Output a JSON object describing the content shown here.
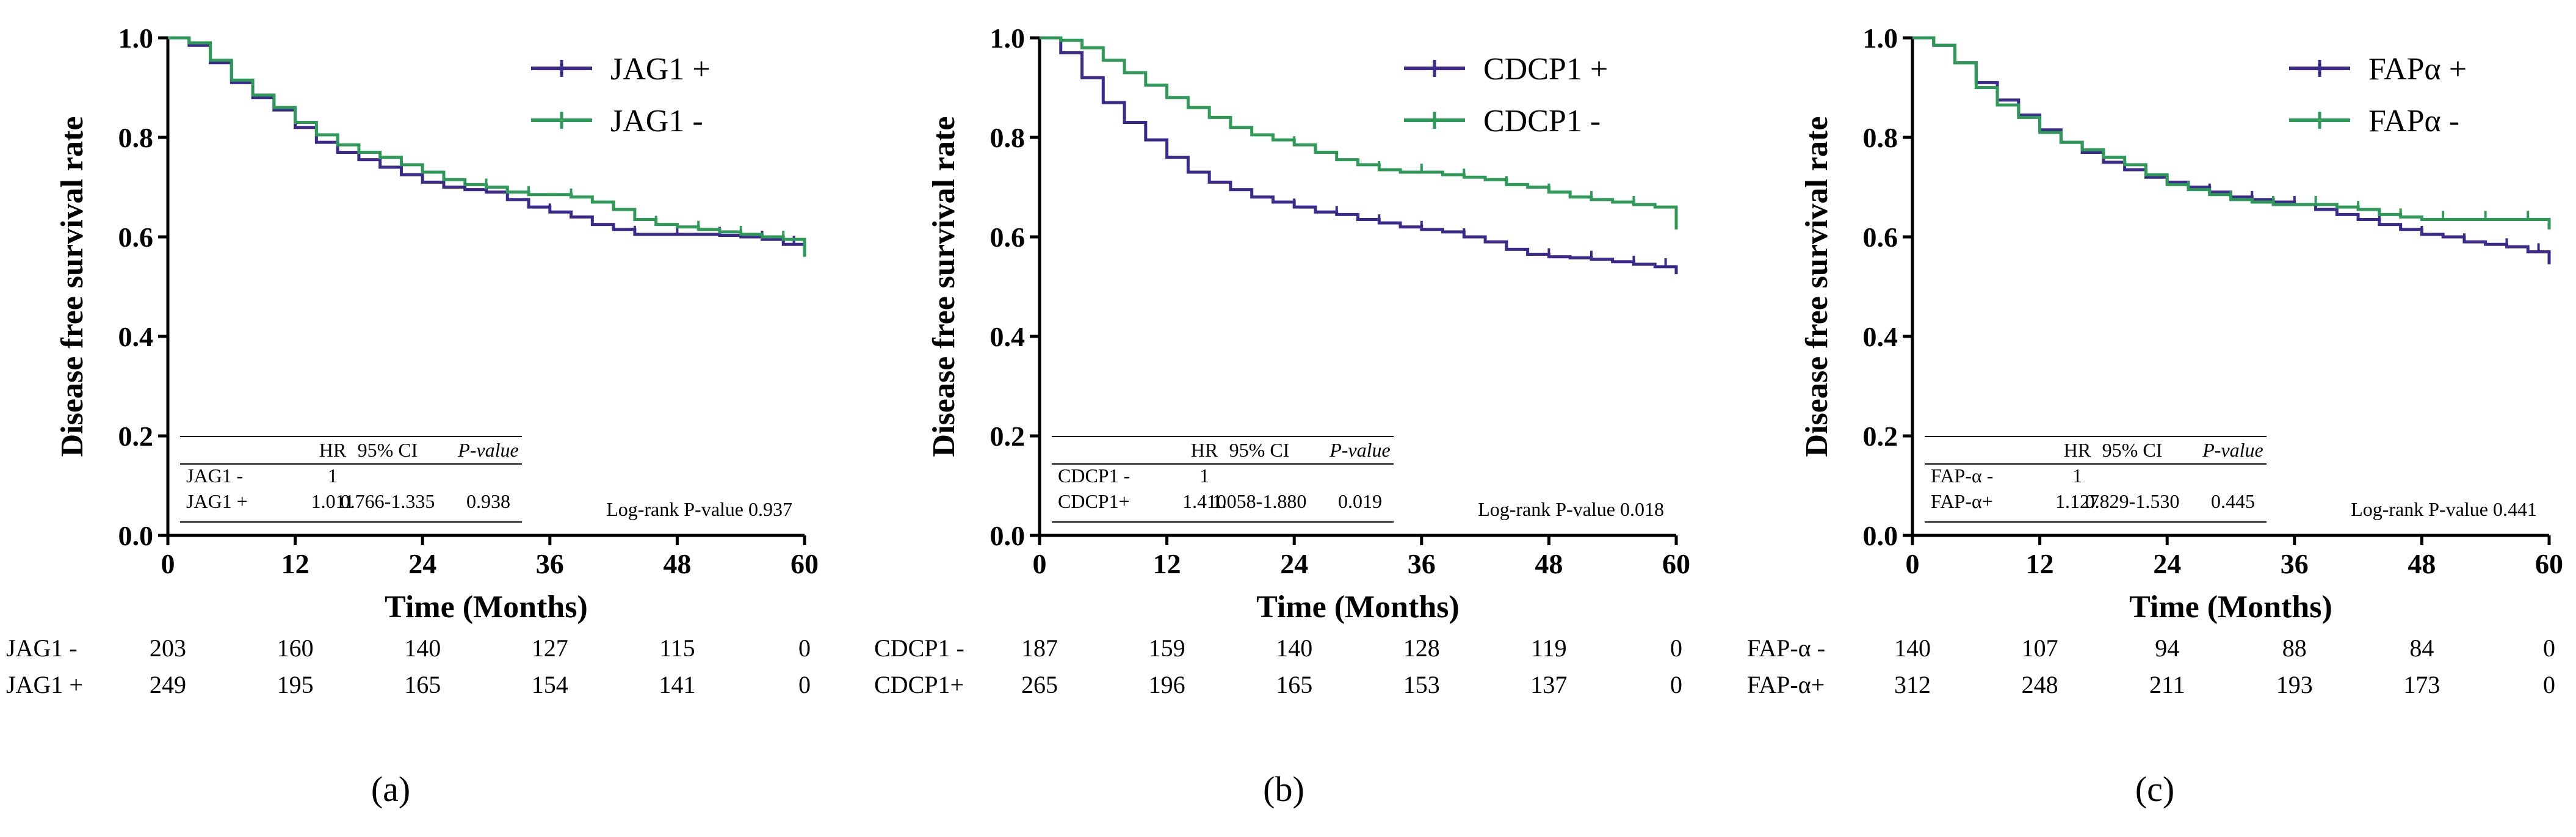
{
  "colors": {
    "positive": "#3b2a8c",
    "negative": "#2e9a57",
    "axis": "#000000"
  },
  "chart_data": [
    {
      "type": "line",
      "panel_label": "(a)",
      "ylabel": "Disease free survival rate",
      "xlabel": "Time (Months)",
      "xlim": [
        0,
        60
      ],
      "ylim": [
        0,
        1
      ],
      "xticks": [
        "0",
        "12",
        "24",
        "36",
        "48",
        "60"
      ],
      "yticks": [
        "0.0",
        "0.2",
        "0.4",
        "0.6",
        "0.8",
        "1.0"
      ],
      "legend_position": "top-right",
      "series": [
        {
          "name": "JAG1 +",
          "color": "positive",
          "x": [
            0,
            2,
            4,
            6,
            8,
            10,
            12,
            14,
            16,
            18,
            20,
            22,
            24,
            26,
            28,
            30,
            32,
            34,
            36,
            38,
            40,
            42,
            44,
            46,
            48,
            50,
            52,
            54,
            56,
            58,
            60
          ],
          "y": [
            1.0,
            0.985,
            0.95,
            0.91,
            0.88,
            0.855,
            0.82,
            0.79,
            0.77,
            0.755,
            0.74,
            0.725,
            0.71,
            0.7,
            0.695,
            0.69,
            0.675,
            0.66,
            0.65,
            0.64,
            0.625,
            0.615,
            0.605,
            0.605,
            0.605,
            0.605,
            0.603,
            0.6,
            0.595,
            0.585,
            0.57
          ],
          "censor_x": [
            16,
            20,
            24,
            28,
            32,
            36,
            40,
            44,
            48,
            52,
            56,
            59
          ]
        },
        {
          "name": "JAG1 -",
          "color": "negative",
          "x": [
            0,
            2,
            4,
            6,
            8,
            10,
            12,
            14,
            16,
            18,
            20,
            22,
            24,
            26,
            28,
            30,
            32,
            34,
            36,
            38,
            40,
            42,
            44,
            46,
            48,
            50,
            52,
            54,
            56,
            58,
            60
          ],
          "y": [
            1.0,
            0.99,
            0.955,
            0.915,
            0.885,
            0.86,
            0.83,
            0.805,
            0.785,
            0.77,
            0.76,
            0.745,
            0.73,
            0.715,
            0.705,
            0.7,
            0.69,
            0.685,
            0.685,
            0.68,
            0.67,
            0.655,
            0.635,
            0.625,
            0.62,
            0.615,
            0.61,
            0.605,
            0.6,
            0.595,
            0.56
          ],
          "censor_x": [
            14,
            18,
            22,
            26,
            30,
            34,
            38,
            42,
            46,
            50,
            54,
            58
          ]
        }
      ],
      "hr_table": {
        "headers": [
          "",
          "HR",
          "95% CI",
          "P-value"
        ],
        "rows": [
          [
            "JAG1 -",
            "1",
            "",
            ""
          ],
          [
            "JAG1 +",
            "1.011",
            "0.766-1.335",
            "0.938"
          ]
        ]
      },
      "logrank": "Log-rank P-value 0.937",
      "risk_table": {
        "rows": [
          {
            "label": "JAG1 -",
            "values": [
              "203",
              "160",
              "140",
              "127",
              "115",
              "0"
            ]
          },
          {
            "label": "JAG1 +",
            "values": [
              "249",
              "195",
              "165",
              "154",
              "141",
              "0"
            ]
          }
        ]
      }
    },
    {
      "type": "line",
      "panel_label": "(b)",
      "ylabel": "Disease free survival rate",
      "xlabel": "Time (Months)",
      "xlim": [
        0,
        60
      ],
      "ylim": [
        0,
        1
      ],
      "xticks": [
        "0",
        "12",
        "24",
        "36",
        "48",
        "60"
      ],
      "yticks": [
        "0.0",
        "0.2",
        "0.4",
        "0.6",
        "0.8",
        "1.0"
      ],
      "legend_position": "top-right",
      "series": [
        {
          "name": "CDCP1 +",
          "color": "positive",
          "x": [
            0,
            2,
            4,
            6,
            8,
            10,
            12,
            14,
            16,
            18,
            20,
            22,
            24,
            26,
            28,
            30,
            32,
            34,
            36,
            38,
            40,
            42,
            44,
            46,
            48,
            50,
            52,
            54,
            56,
            58,
            60
          ],
          "y": [
            1.0,
            0.97,
            0.92,
            0.87,
            0.83,
            0.795,
            0.76,
            0.73,
            0.71,
            0.695,
            0.68,
            0.67,
            0.66,
            0.65,
            0.645,
            0.635,
            0.628,
            0.62,
            0.615,
            0.61,
            0.6,
            0.59,
            0.575,
            0.565,
            0.56,
            0.558,
            0.555,
            0.55,
            0.545,
            0.54,
            0.525
          ],
          "censor_x": [
            16,
            20,
            24,
            28,
            32,
            36,
            40,
            44,
            48,
            52,
            56,
            59
          ]
        },
        {
          "name": "CDCP1 -",
          "color": "negative",
          "x": [
            0,
            2,
            4,
            6,
            8,
            10,
            12,
            14,
            16,
            18,
            20,
            22,
            24,
            26,
            28,
            30,
            32,
            34,
            36,
            38,
            40,
            42,
            44,
            46,
            48,
            50,
            52,
            54,
            56,
            58,
            60
          ],
          "y": [
            1.0,
            0.995,
            0.98,
            0.955,
            0.93,
            0.905,
            0.88,
            0.86,
            0.84,
            0.82,
            0.805,
            0.795,
            0.785,
            0.77,
            0.755,
            0.745,
            0.735,
            0.73,
            0.73,
            0.725,
            0.72,
            0.715,
            0.705,
            0.7,
            0.69,
            0.68,
            0.675,
            0.67,
            0.665,
            0.66,
            0.615
          ],
          "censor_x": [
            12,
            16,
            20,
            24,
            28,
            32,
            36,
            40,
            44,
            48,
            52,
            56
          ]
        }
      ],
      "hr_table": {
        "headers": [
          "",
          "HR",
          "95% CI",
          "P-value"
        ],
        "rows": [
          [
            "CDCP1 -",
            "1",
            "",
            ""
          ],
          [
            "CDCP1+",
            "1.410",
            "1.058-1.880",
            "0.019"
          ]
        ]
      },
      "logrank": "Log-rank P-value 0.018",
      "risk_table": {
        "rows": [
          {
            "label": "CDCP1 -",
            "values": [
              "187",
              "159",
              "140",
              "128",
              "119",
              "0"
            ]
          },
          {
            "label": "CDCP1+",
            "values": [
              "265",
              "196",
              "165",
              "153",
              "137",
              "0"
            ]
          }
        ]
      }
    },
    {
      "type": "line",
      "panel_label": "(c)",
      "ylabel": "Disease free survival rate",
      "xlabel": "Time (Months)",
      "xlim": [
        0,
        60
      ],
      "ylim": [
        0,
        1
      ],
      "xticks": [
        "0",
        "12",
        "24",
        "36",
        "48",
        "60"
      ],
      "yticks": [
        "0.0",
        "0.2",
        "0.4",
        "0.6",
        "0.8",
        "1.0"
      ],
      "legend_position": "top-right",
      "series": [
        {
          "name": "FAPα +",
          "color": "positive",
          "x": [
            0,
            2,
            4,
            6,
            8,
            10,
            12,
            14,
            16,
            18,
            20,
            22,
            24,
            26,
            28,
            30,
            32,
            34,
            36,
            38,
            40,
            42,
            44,
            46,
            48,
            50,
            52,
            54,
            56,
            58,
            60
          ],
          "y": [
            1.0,
            0.985,
            0.95,
            0.91,
            0.875,
            0.845,
            0.815,
            0.79,
            0.77,
            0.75,
            0.735,
            0.72,
            0.71,
            0.7,
            0.69,
            0.68,
            0.675,
            0.67,
            0.665,
            0.655,
            0.645,
            0.635,
            0.625,
            0.615,
            0.605,
            0.6,
            0.59,
            0.585,
            0.58,
            0.57,
            0.545
          ],
          "censor_x": [
            16,
            20,
            24,
            28,
            32,
            36,
            40,
            44,
            48,
            52,
            56,
            59
          ]
        },
        {
          "name": "FAPα -",
          "color": "negative",
          "x": [
            0,
            2,
            4,
            6,
            8,
            10,
            12,
            14,
            16,
            18,
            20,
            22,
            24,
            26,
            28,
            30,
            32,
            34,
            36,
            38,
            40,
            42,
            44,
            46,
            48,
            50,
            52,
            54,
            56,
            58,
            60
          ],
          "y": [
            1.0,
            0.985,
            0.95,
            0.9,
            0.865,
            0.84,
            0.81,
            0.79,
            0.775,
            0.76,
            0.745,
            0.725,
            0.705,
            0.695,
            0.685,
            0.675,
            0.67,
            0.665,
            0.665,
            0.665,
            0.66,
            0.655,
            0.645,
            0.64,
            0.635,
            0.635,
            0.635,
            0.635,
            0.635,
            0.635,
            0.615
          ],
          "censor_x": [
            14,
            18,
            22,
            26,
            30,
            34,
            38,
            42,
            46,
            50,
            54,
            58
          ]
        }
      ],
      "hr_table": {
        "headers": [
          "",
          "HR",
          "95% CI",
          "P-value"
        ],
        "rows": [
          [
            "FAP-α -",
            "1",
            "",
            ""
          ],
          [
            "FAP-α+",
            "1.127",
            "0.829-1.530",
            "0.445"
          ]
        ]
      },
      "logrank": "Log-rank P-value 0.441",
      "risk_table": {
        "rows": [
          {
            "label": "FAP-α -",
            "values": [
              "140",
              "107",
              "94",
              "88",
              "84",
              "0"
            ]
          },
          {
            "label": "FAP-α+",
            "values": [
              "312",
              "248",
              "211",
              "193",
              "173",
              "0"
            ]
          }
        ]
      }
    }
  ]
}
